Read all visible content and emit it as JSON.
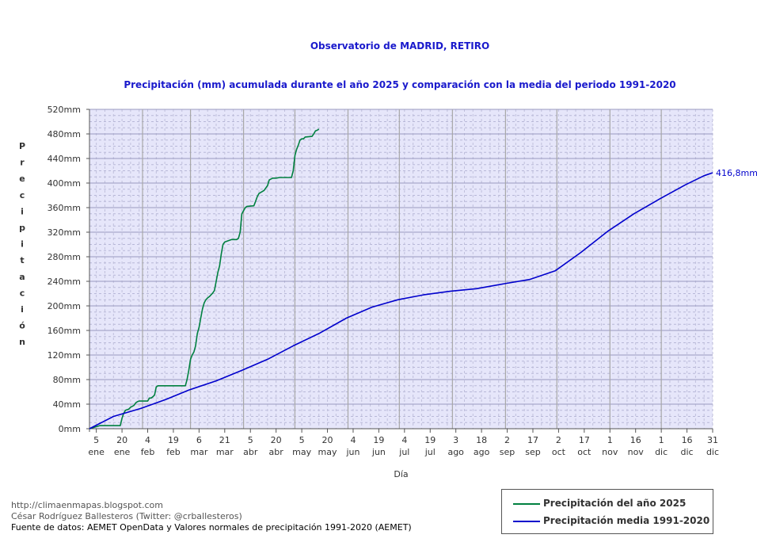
{
  "chart_data": {
    "type": "line",
    "title": "Observatorio de MADRID, RETIRO",
    "subtitle": "Precipitación (mm) acumulada durante el año 2025 y comparación con la media del periodo 1991-2020",
    "xlabel": "Día",
    "ylabel": "Precipitación",
    "ylim": [
      0,
      520
    ],
    "xlim": [
      1,
      365
    ],
    "yticks": [
      {
        "value": 0,
        "label": "0mm"
      },
      {
        "value": 40,
        "label": "40mm"
      },
      {
        "value": 80,
        "label": "80mm"
      },
      {
        "value": 120,
        "label": "120mm"
      },
      {
        "value": 160,
        "label": "160mm"
      },
      {
        "value": 200,
        "label": "200mm"
      },
      {
        "value": 240,
        "label": "240mm"
      },
      {
        "value": 280,
        "label": "280mm"
      },
      {
        "value": 320,
        "label": "320mm"
      },
      {
        "value": 360,
        "label": "360mm"
      },
      {
        "value": 400,
        "label": "400mm"
      },
      {
        "value": 440,
        "label": "440mm"
      },
      {
        "value": 480,
        "label": "480mm"
      },
      {
        "value": 520,
        "label": "520mm"
      }
    ],
    "xticks": [
      {
        "day": 5,
        "label1": "5",
        "label2": "ene"
      },
      {
        "day": 20,
        "label1": "20",
        "label2": "ene"
      },
      {
        "day": 35,
        "label1": "4",
        "label2": "feb"
      },
      {
        "day": 50,
        "label1": "19",
        "label2": "feb"
      },
      {
        "day": 65,
        "label1": "6",
        "label2": "mar"
      },
      {
        "day": 80,
        "label1": "21",
        "label2": "mar"
      },
      {
        "day": 95,
        "label1": "5",
        "label2": "abr"
      },
      {
        "day": 110,
        "label1": "20",
        "label2": "abr"
      },
      {
        "day": 125,
        "label1": "5",
        "label2": "may"
      },
      {
        "day": 140,
        "label1": "20",
        "label2": "may"
      },
      {
        "day": 155,
        "label1": "4",
        "label2": "jun"
      },
      {
        "day": 170,
        "label1": "19",
        "label2": "jun"
      },
      {
        "day": 185,
        "label1": "4",
        "label2": "jul"
      },
      {
        "day": 200,
        "label1": "19",
        "label2": "jul"
      },
      {
        "day": 215,
        "label1": "3",
        "label2": "ago"
      },
      {
        "day": 230,
        "label1": "18",
        "label2": "ago"
      },
      {
        "day": 245,
        "label1": "2",
        "label2": "sep"
      },
      {
        "day": 260,
        "label1": "17",
        "label2": "sep"
      },
      {
        "day": 275,
        "label1": "2",
        "label2": "oct"
      },
      {
        "day": 290,
        "label1": "17",
        "label2": "oct"
      },
      {
        "day": 305,
        "label1": "1",
        "label2": "nov"
      },
      {
        "day": 320,
        "label1": "16",
        "label2": "nov"
      },
      {
        "day": 335,
        "label1": "1",
        "label2": "dic"
      },
      {
        "day": 350,
        "label1": "16",
        "label2": "dic"
      },
      {
        "day": 365,
        "label1": "31",
        "label2": "dic"
      }
    ],
    "month_start_days": [
      32,
      60,
      91,
      121,
      152,
      182,
      213,
      244,
      274,
      305,
      335
    ],
    "grid": true,
    "legend_position": "bottom-right",
    "series": [
      {
        "name": "Precipitación del año 2025",
        "color": "#008040",
        "x": [
          1,
          7,
          19,
          20,
          21,
          22,
          24,
          25,
          27,
          28,
          29,
          30,
          35,
          36,
          37,
          38,
          39,
          40,
          41,
          57,
          58,
          59,
          60,
          61,
          62,
          63,
          64,
          65,
          66,
          67,
          68,
          69,
          70,
          71,
          72,
          73,
          74,
          75,
          76,
          77,
          78,
          79,
          80,
          84,
          85,
          86,
          87,
          88,
          89,
          90,
          92,
          93,
          97,
          98,
          99,
          100,
          103,
          104,
          105,
          106,
          108,
          110,
          112,
          119,
          120,
          121,
          122,
          123,
          124,
          125,
          126,
          127,
          131,
          132,
          133,
          134,
          135
        ],
        "values": [
          0,
          5,
          5,
          17,
          25,
          30,
          32,
          35,
          38,
          42,
          44,
          45,
          45,
          50,
          50,
          52,
          55,
          68,
          70,
          70,
          80,
          95,
          113,
          120,
          125,
          135,
          155,
          165,
          180,
          195,
          205,
          210,
          213,
          215,
          218,
          221,
          225,
          240,
          255,
          265,
          285,
          300,
          304,
          308,
          308,
          308,
          308,
          310,
          320,
          350,
          360,
          362,
          363,
          370,
          378,
          383,
          388,
          392,
          396,
          405,
          408,
          408,
          409,
          409,
          420,
          445,
          455,
          462,
          470,
          472,
          472,
          475,
          476,
          480,
          485,
          486,
          488
        ]
      },
      {
        "name": "Precipitación media 1991-2020",
        "color": "#0000cc",
        "x": [
          1,
          15,
          31,
          46,
          59,
          75,
          90,
          105,
          120,
          135,
          151,
          166,
          181,
          196,
          212,
          227,
          243,
          258,
          273,
          288,
          304,
          319,
          334,
          349,
          360,
          365
        ],
        "values": [
          0,
          20,
          33,
          48,
          63,
          78,
          95,
          113,
          135,
          155,
          180,
          198,
          210,
          218,
          224,
          228,
          236,
          243,
          257,
          287,
          322,
          350,
          374,
          397,
          412,
          416.8
        ]
      }
    ],
    "annotations": [
      {
        "text": "416,8mm",
        "day": 365,
        "value": 416.8
      }
    ]
  },
  "footer": {
    "blog": "http://climaenmapas.blogspot.com",
    "author": "César Rodríguez Ballesteros (Twitter: @crballesteros)",
    "source": "Fuente de datos: AEMET OpenData y Valores normales de precipitación 1991-2020 (AEMET)"
  },
  "legend": {
    "item1": "Precipitación del año 2025",
    "item2": "Precipitación media 1991-2020"
  }
}
